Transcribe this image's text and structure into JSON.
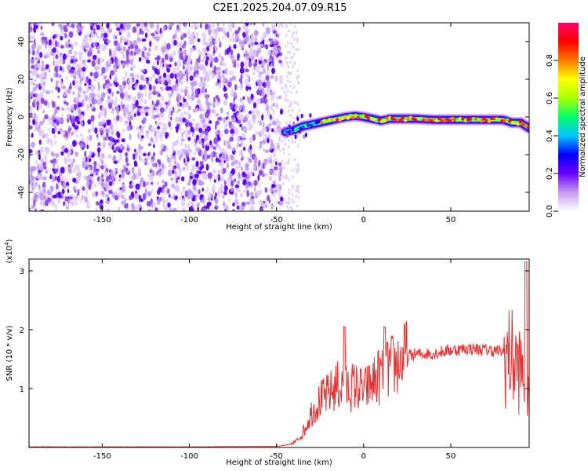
{
  "title": "C2E1.2025.204.07.09.R15",
  "colors": {
    "line": "#e83030",
    "frame": "#000000"
  },
  "chart_data": [
    {
      "type": "heatmap",
      "xlabel": "Height of straight line (km)",
      "ylabel": "Frequency (Hz)",
      "xlim": [
        -192,
        95
      ],
      "ylim": [
        -50,
        50
      ],
      "xticks": [
        -150,
        -100,
        -50,
        0,
        50
      ],
      "yticks": [
        -40,
        -20,
        0,
        20,
        40
      ],
      "noise_region_x": [
        -192,
        -47
      ],
      "signal_track": [
        {
          "x": -45,
          "y": -8
        },
        {
          "x": -40,
          "y": -7
        },
        {
          "x": -35,
          "y": -5
        },
        {
          "x": -30,
          "y": -4
        },
        {
          "x": -25,
          "y": -3
        },
        {
          "x": -20,
          "y": -2
        },
        {
          "x": -15,
          "y": -1
        },
        {
          "x": -10,
          "y": 0
        },
        {
          "x": -5,
          "y": 0.5
        },
        {
          "x": 0,
          "y": 0
        },
        {
          "x": 5,
          "y": -1
        },
        {
          "x": 10,
          "y": -2
        },
        {
          "x": 15,
          "y": -1
        },
        {
          "x": 20,
          "y": -1
        },
        {
          "x": 30,
          "y": -1
        },
        {
          "x": 40,
          "y": -1.5
        },
        {
          "x": 50,
          "y": -1.5
        },
        {
          "x": 60,
          "y": -1.5
        },
        {
          "x": 70,
          "y": -1.5
        },
        {
          "x": 80,
          "y": -1.5
        },
        {
          "x": 85,
          "y": -3
        },
        {
          "x": 90,
          "y": -3
        },
        {
          "x": 95,
          "y": -6
        }
      ],
      "colorbar": {
        "label": "Normalized spectral amplitude",
        "ticks": [
          0.0,
          0.2,
          0.4,
          0.6,
          0.8
        ],
        "range": [
          0,
          1
        ],
        "stops": [
          "#ffffff",
          "#c59bf0",
          "#6a00ff",
          "#0000ff",
          "#00c8ff",
          "#00ff66",
          "#aaff00",
          "#ffff00",
          "#ff7a00",
          "#ff0000",
          "#ff0066"
        ]
      }
    },
    {
      "type": "line",
      "xlabel": "Height of straight line (km)",
      "ylabel": "SNR (10 * v/v)",
      "multiplier_base": "(x10",
      "multiplier_exp": "4",
      "multiplier_close": ")",
      "xlim": [
        -192,
        95
      ],
      "ylim": [
        0,
        3.2
      ],
      "xticks": [
        -150,
        -100,
        -50,
        0,
        50
      ],
      "yticks": [
        1,
        2,
        3
      ],
      "envelope": [
        {
          "x": -192,
          "y": 0.01
        },
        {
          "x": -100,
          "y": 0.01
        },
        {
          "x": -50,
          "y": 0.02
        },
        {
          "x": -42,
          "y": 0.05
        },
        {
          "x": -38,
          "y": 0.12
        },
        {
          "x": -34,
          "y": 0.3
        },
        {
          "x": -30,
          "y": 0.6
        },
        {
          "x": -25,
          "y": 0.8
        },
        {
          "x": -20,
          "y": 0.9
        },
        {
          "x": -15,
          "y": 1.05
        },
        {
          "x": -10,
          "y": 1.0
        },
        {
          "x": -5,
          "y": 1.05
        },
        {
          "x": 0,
          "y": 0.95
        },
        {
          "x": 5,
          "y": 1.1
        },
        {
          "x": 10,
          "y": 1.25
        },
        {
          "x": 15,
          "y": 1.35
        },
        {
          "x": 20,
          "y": 1.45
        },
        {
          "x": 25,
          "y": 1.55
        },
        {
          "x": 30,
          "y": 1.58
        },
        {
          "x": 40,
          "y": 1.6
        },
        {
          "x": 50,
          "y": 1.65
        },
        {
          "x": 60,
          "y": 1.68
        },
        {
          "x": 70,
          "y": 1.66
        },
        {
          "x": 80,
          "y": 1.62
        },
        {
          "x": 85,
          "y": 1.5
        },
        {
          "x": 90,
          "y": 1.3
        },
        {
          "x": 95,
          "y": 1.1
        }
      ],
      "peaks": [
        {
          "x": -11,
          "y": 2.05
        },
        {
          "x": 12,
          "y": 2.05
        },
        {
          "x": 93,
          "y": 3.15
        }
      ]
    }
  ]
}
